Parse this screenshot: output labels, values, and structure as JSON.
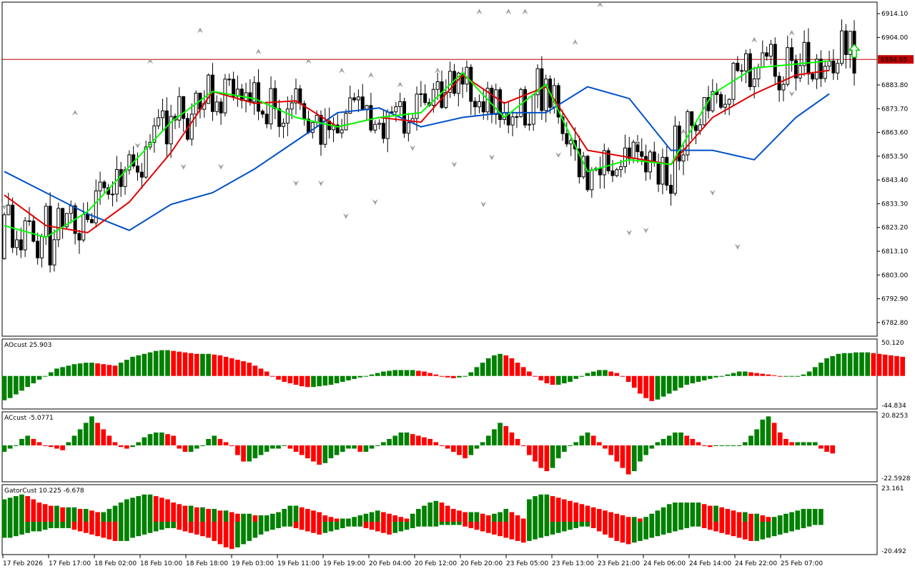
{
  "colors": {
    "up": "#008000",
    "down": "#ff0000",
    "green_line": "#00ff00",
    "red_line": "#e00000",
    "blue_line": "#0050c8",
    "hline": "#c00000",
    "price_box": "#c00000",
    "fractal": "#a0a0a0",
    "signal_arrow": "#00cc00"
  },
  "icons": {
    "fractal_up": "fractal-up-arrow-icon",
    "fractal_down": "fractal-down-arrow-icon",
    "signal": "buy-arrow-icon"
  },
  "chart_data": [
    {
      "type": "candlestick",
      "panel": "main",
      "y_ticks": [
        "6914.10",
        "6904.00",
        "6883.80",
        "6873.70",
        "6863.60",
        "6853.50",
        "6843.40",
        "6833.30",
        "6823.20",
        "6813.10",
        "6803.00",
        "6792.90",
        "6782.80"
      ],
      "ylim": [
        6777,
        6919
      ],
      "current_price": "6894.65",
      "hline_value": 6894.65,
      "x_tick_labels": [
        "17 Feb 2026",
        "17 Feb 17:00",
        "18 Feb 02:00",
        "18 Feb 10:00",
        "18 Feb 18:00",
        "19 Feb 03:00",
        "19 Feb 11:00",
        "19 Feb 19:00",
        "20 Feb 04:00",
        "20 Feb 12:00",
        "20 Feb 20:00",
        "23 Feb 05:00",
        "23 Feb 13:00",
        "23 Feb 21:00",
        "24 Feb 06:00",
        "24 Feb 14:00",
        "24 Feb 22:00",
        "25 Feb 07:00"
      ],
      "alligator": {
        "blue": [
          [
            0,
            6847
          ],
          [
            10,
            6838
          ],
          [
            20,
            6829
          ],
          [
            30,
            6822
          ],
          [
            40,
            6833
          ],
          [
            50,
            6838
          ],
          [
            60,
            6848
          ],
          [
            70,
            6860
          ],
          [
            80,
            6872
          ],
          [
            90,
            6874
          ],
          [
            100,
            6866
          ],
          [
            110,
            6870
          ],
          [
            120,
            6872
          ],
          [
            130,
            6872
          ],
          [
            140,
            6883
          ],
          [
            150,
            6878
          ],
          [
            160,
            6856
          ],
          [
            170,
            6856
          ],
          [
            180,
            6852
          ],
          [
            190,
            6870
          ],
          [
            198,
            6880
          ]
        ],
        "red": [
          [
            0,
            6837
          ],
          [
            10,
            6824
          ],
          [
            20,
            6821
          ],
          [
            30,
            6834
          ],
          [
            40,
            6855
          ],
          [
            50,
            6881
          ],
          [
            60,
            6876
          ],
          [
            70,
            6877
          ],
          [
            80,
            6866
          ],
          [
            90,
            6870
          ],
          [
            100,
            6868
          ],
          [
            110,
            6888
          ],
          [
            120,
            6876
          ],
          [
            130,
            6883
          ],
          [
            140,
            6856
          ],
          [
            150,
            6853
          ],
          [
            160,
            6850
          ],
          [
            170,
            6870
          ],
          [
            180,
            6880
          ],
          [
            190,
            6888
          ],
          [
            198,
            6890
          ]
        ],
        "green": [
          [
            0,
            6824
          ],
          [
            10,
            6819
          ],
          [
            20,
            6830
          ],
          [
            30,
            6849
          ],
          [
            40,
            6868
          ],
          [
            50,
            6881
          ],
          [
            60,
            6878
          ],
          [
            70,
            6870
          ],
          [
            80,
            6866
          ],
          [
            90,
            6870
          ],
          [
            100,
            6872
          ],
          [
            110,
            6889
          ],
          [
            120,
            6870
          ],
          [
            130,
            6884
          ],
          [
            140,
            6847
          ],
          [
            150,
            6852
          ],
          [
            160,
            6850
          ],
          [
            170,
            6880
          ],
          [
            180,
            6891
          ],
          [
            198,
            6894
          ]
        ]
      },
      "fractals_up": [
        [
          17,
          6872
        ],
        [
          35,
          6894
        ],
        [
          47,
          6907
        ],
        [
          61,
          6898
        ],
        [
          73,
          6894
        ],
        [
          81,
          6890
        ],
        [
          88,
          6888
        ],
        [
          95,
          6884
        ],
        [
          104,
          6890
        ],
        [
          114,
          6915
        ],
        [
          121,
          6915
        ],
        [
          125,
          6915
        ],
        [
          137,
          6902
        ],
        [
          143,
          6918
        ],
        [
          152,
          6859
        ],
        [
          163,
          6864
        ],
        [
          180,
          6903
        ],
        [
          189,
          6906
        ]
      ],
      "fractals_down": [
        [
          0,
          6832
        ],
        [
          32,
          6858
        ],
        [
          43,
          6849
        ],
        [
          52,
          6849
        ],
        [
          70,
          6842
        ],
        [
          76,
          6842
        ],
        [
          82,
          6828
        ],
        [
          89,
          6834
        ],
        [
          98,
          6857
        ],
        [
          108,
          6850
        ],
        [
          115,
          6833
        ],
        [
          117,
          6853
        ],
        [
          133,
          6854
        ],
        [
          150,
          6821
        ],
        [
          154,
          6822
        ],
        [
          170,
          6838
        ],
        [
          176,
          6815
        ],
        [
          189,
          6880
        ]
      ],
      "buy_arrow": [
        204,
        6898
      ]
    },
    {
      "type": "bar",
      "panel": "ao",
      "title": "AOcust 25.903",
      "y_ticks": [
        "50.120",
        "-44.834"
      ],
      "ylim": [
        -44.834,
        50.12
      ],
      "values": [
        -33,
        -30,
        -25,
        -20,
        -15,
        -10,
        -5,
        0,
        5,
        10,
        12,
        14,
        16,
        17,
        18,
        18,
        17,
        16,
        15,
        14,
        18,
        22,
        26,
        28,
        30,
        32,
        34,
        35,
        35,
        34,
        33,
        32,
        31,
        30,
        30,
        30,
        29,
        28,
        26,
        24,
        22,
        20,
        18,
        14,
        10,
        6,
        0,
        -5,
        -8,
        -10,
        -12,
        -14,
        -15,
        -15,
        -14,
        -13,
        -12,
        -10,
        -8,
        -6,
        -4,
        -2,
        0,
        2,
        4,
        6,
        7,
        8,
        8,
        8,
        8,
        7,
        6,
        4,
        2,
        0,
        -2,
        -3,
        -2,
        0,
        5,
        12,
        18,
        24,
        28,
        30,
        28,
        24,
        18,
        12,
        6,
        0,
        -6,
        -10,
        -12,
        -12,
        -10,
        -8,
        -4,
        0,
        4,
        6,
        8,
        8,
        6,
        4,
        0,
        -8,
        -16,
        -24,
        -30,
        -34,
        -32,
        -28,
        -24,
        -20,
        -16,
        -12,
        -10,
        -8,
        -6,
        -4,
        -2,
        0,
        2,
        4,
        6,
        6,
        5,
        4,
        3,
        2,
        1,
        0,
        0,
        0,
        0,
        2,
        6,
        12,
        18,
        24,
        27,
        30,
        31,
        31,
        32,
        32,
        32,
        31,
        30,
        29,
        28,
        27,
        26
      ],
      "colors_by_change": true
    },
    {
      "type": "bar",
      "panel": "ac",
      "title": "ACcust -5.0771",
      "y_ticks": [
        "20.8253",
        "-22.5928"
      ],
      "ylim": [
        -22.5928,
        20.8253
      ],
      "values": [
        -4,
        -2,
        0,
        4,
        6,
        4,
        2,
        0,
        -1,
        -2,
        -3,
        2,
        6,
        10,
        14,
        18,
        14,
        10,
        6,
        2,
        -1,
        -2,
        -1,
        2,
        5,
        7,
        8,
        8,
        7,
        6,
        -2,
        -4,
        -4,
        -2,
        0,
        4,
        6,
        4,
        2,
        0,
        -6,
        -10,
        -10,
        -8,
        -6,
        -4,
        -2,
        -2,
        0,
        -2,
        -4,
        -6,
        -8,
        -10,
        -12,
        -11,
        -8,
        -6,
        -4,
        -2,
        -2,
        -4,
        -4,
        -2,
        0,
        2,
        4,
        6,
        8,
        8,
        7,
        6,
        5,
        4,
        2,
        0,
        -2,
        -4,
        -6,
        -8,
        -6,
        -2,
        2,
        6,
        10,
        14,
        12,
        8,
        4,
        0,
        -6,
        -10,
        -14,
        -16,
        -14,
        -8,
        -4,
        0,
        2,
        6,
        8,
        6,
        2,
        -2,
        -6,
        -10,
        -14,
        -18,
        -16,
        -10,
        -6,
        -2,
        2,
        4,
        6,
        8,
        8,
        6,
        4,
        2,
        0,
        -1,
        0,
        0,
        0,
        0,
        0,
        2,
        6,
        10,
        16,
        18,
        14,
        8,
        4,
        2,
        2,
        2,
        2,
        2,
        -2,
        -4,
        -5
      ],
      "colors_by_change": true
    },
    {
      "type": "bar",
      "panel": "gator",
      "title": "GatorCust 10.225 -6.678",
      "y_ticks": [
        "23.161",
        "-20.492"
      ],
      "ylim": [
        -20.492,
        23.161
      ],
      "upper": [
        14,
        15,
        16,
        17,
        16,
        14,
        12,
        11,
        10,
        10,
        9,
        9,
        9,
        8,
        8,
        7,
        6,
        6,
        8,
        10,
        12,
        14,
        15,
        16,
        17,
        17,
        16,
        15,
        14,
        12,
        11,
        10,
        10,
        9,
        9,
        8,
        8,
        7,
        7,
        6,
        5,
        5,
        5,
        4,
        4,
        4,
        5,
        6,
        8,
        10,
        10,
        9,
        8,
        7,
        6,
        4,
        3,
        2,
        2,
        2,
        3,
        4,
        5,
        6,
        7,
        6,
        5,
        4,
        3,
        2,
        5,
        8,
        10,
        12,
        13,
        12,
        10,
        8,
        7,
        6,
        6,
        6,
        5,
        4,
        5,
        6,
        8,
        6,
        4,
        2,
        14,
        16,
        17,
        17,
        16,
        15,
        14,
        13,
        12,
        11,
        10,
        9,
        8,
        7,
        6,
        5,
        4,
        3,
        3,
        2,
        3,
        5,
        7,
        9,
        11,
        12,
        12,
        12,
        12,
        12,
        11,
        10,
        10,
        9,
        8,
        7,
        6,
        6,
        5,
        5,
        4,
        3,
        3,
        4,
        5,
        6,
        7,
        8,
        8,
        8,
        8
      ],
      "lower": [
        -10,
        -10,
        -9,
        -8,
        -7,
        -6,
        -6,
        -5,
        -4,
        -4,
        -4,
        -4,
        -5,
        -6,
        -7,
        -8,
        -9,
        -10,
        -11,
        -12,
        -12,
        -12,
        -10,
        -9,
        -8,
        -7,
        -6,
        -5,
        -4,
        -4,
        -5,
        -6,
        -7,
        -8,
        -9,
        -10,
        -12,
        -14,
        -16,
        -17,
        -16,
        -14,
        -12,
        -10,
        -8,
        -6,
        -5,
        -4,
        -3,
        -3,
        -4,
        -5,
        -6,
        -7,
        -8,
        -7,
        -6,
        -5,
        -4,
        -3,
        -3,
        -3,
        -4,
        -5,
        -6,
        -7,
        -8,
        -7,
        -6,
        -5,
        -4,
        -3,
        -3,
        -3,
        -3,
        -2,
        -2,
        -2,
        -2,
        -3,
        -4,
        -5,
        -6,
        -7,
        -8,
        -9,
        -10,
        -11,
        -12,
        -13,
        -12,
        -11,
        -10,
        -9,
        -8,
        -7,
        -6,
        -5,
        -4,
        -3,
        -3,
        -4,
        -6,
        -8,
        -10,
        -12,
        -13,
        -14,
        -13,
        -12,
        -11,
        -10,
        -9,
        -8,
        -7,
        -6,
        -5,
        -4,
        -3,
        -3,
        -4,
        -5,
        -6,
        -7,
        -8,
        -9,
        -10,
        -11,
        -12,
        -12,
        -11,
        -10,
        -9,
        -8,
        -7,
        -6,
        -5,
        -4,
        -3,
        -2,
        -2
      ],
      "colors_by_change": true
    }
  ],
  "candles_seed": 20260217
}
